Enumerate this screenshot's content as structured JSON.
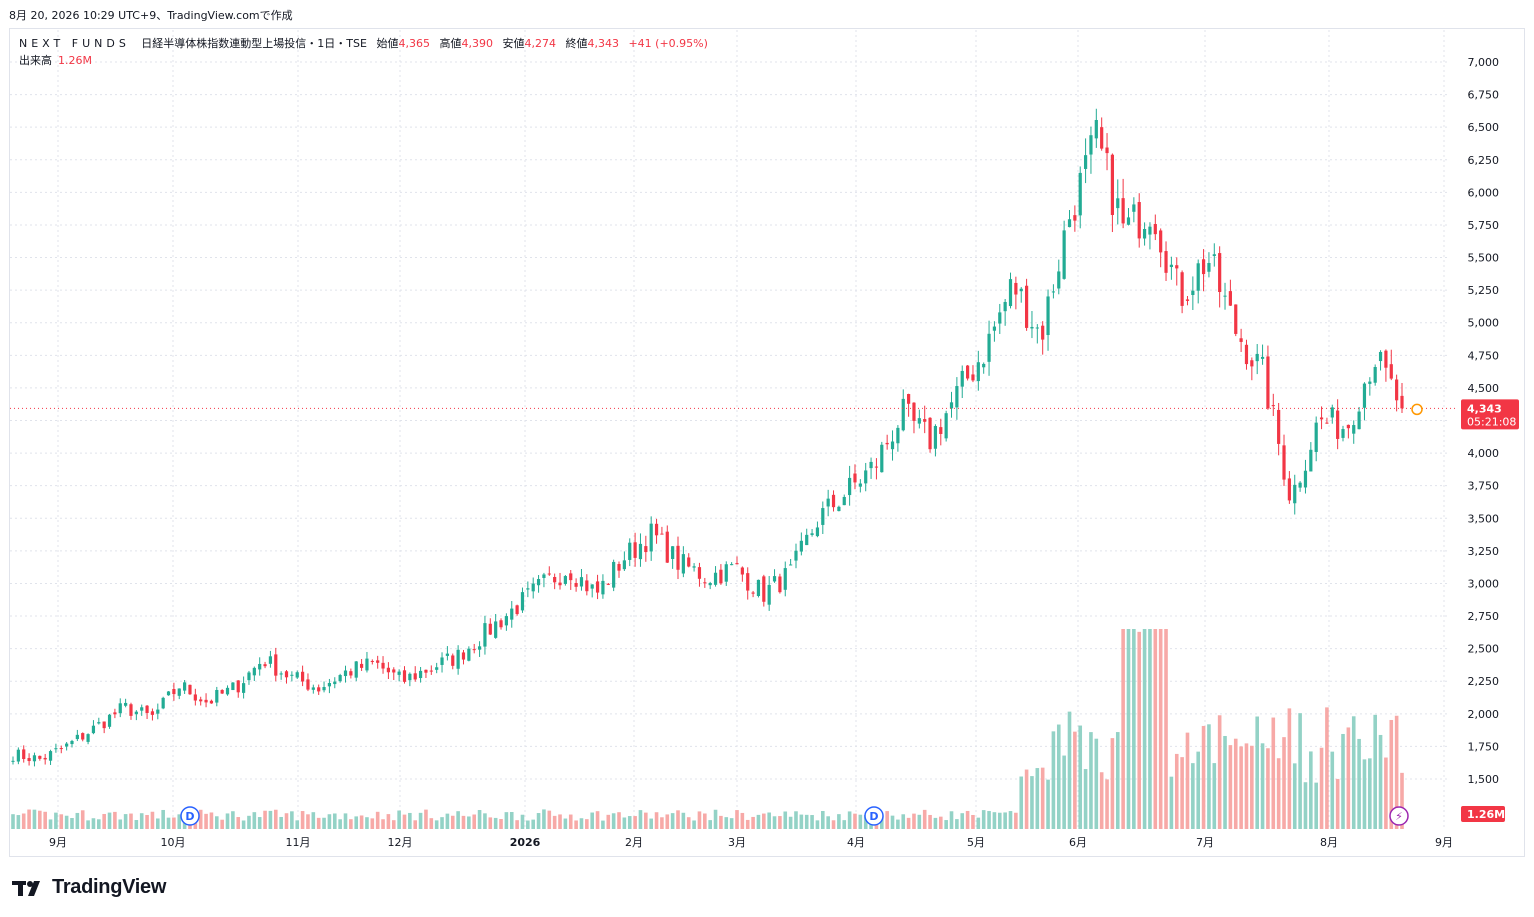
{
  "header": {
    "timestamp": "8月 20, 2026 10:29 UTC+9、TradingView.comで作成"
  },
  "legend": {
    "fund_name": "NEXT FUNDS",
    "instrument": "日経半導体株指数連動型上場投信・1日・TSE",
    "open_label": "始値",
    "open": "4,365",
    "high_label": "高値",
    "high": "4,390",
    "low_label": "安値",
    "low": "4,274",
    "close_label": "終値",
    "close": "4,343",
    "change": "+41 (+0.95%)",
    "volume_label": "出来高",
    "volume": "1.26M"
  },
  "price_badge": {
    "price": "4,343",
    "countdown": "05:21:08"
  },
  "volume_badge": "1.26M",
  "colors": {
    "up": "#22ab94",
    "down": "#f23645",
    "up_vol": "#93d2c6",
    "down_vol": "#f7a9a7",
    "grid": "#e0e3eb",
    "dividend": "#2962ff"
  },
  "footer": {
    "brand": "TradingView"
  },
  "dividend_markers": [
    {
      "label": "D",
      "date": "10月"
    },
    {
      "label": "D",
      "date": "4月"
    }
  ],
  "chart_data": {
    "type": "candlestick",
    "y_axis_ticks": [
      "7,000",
      "6,750",
      "6,500",
      "6,250",
      "6,000",
      "5,750",
      "5,500",
      "5,250",
      "5,000",
      "4,750",
      "4,500",
      "4,250",
      "4,000",
      "3,750",
      "3,500",
      "3,250",
      "3,000",
      "2,750",
      "2,500",
      "2,250",
      "2,000",
      "1,750",
      "1,500"
    ],
    "ylim": [
      1400,
      7100
    ],
    "x_axis_ticks": [
      "9月",
      "10月",
      "11月",
      "12月",
      "2026",
      "2月",
      "3月",
      "4月",
      "5月",
      "6月",
      "7月",
      "8月",
      "9月"
    ],
    "close_points": [
      [
        "8月",
        1690
      ],
      [
        "9月",
        1650
      ],
      [
        "9月",
        1760
      ],
      [
        "9月",
        1900
      ],
      [
        "10月",
        2050
      ],
      [
        "10月",
        1970
      ],
      [
        "10月",
        2220
      ],
      [
        "10月",
        2090
      ],
      [
        "11月",
        2200
      ],
      [
        "11月",
        2420
      ],
      [
        "11月",
        2280
      ],
      [
        "12月",
        2200
      ],
      [
        "12月",
        2320
      ],
      [
        "12月",
        2390
      ],
      [
        "12月",
        2250
      ],
      [
        "2026",
        2350
      ],
      [
        "2026",
        2440
      ],
      [
        "2026",
        2620
      ],
      [
        "2026",
        2800
      ],
      [
        "2月",
        2980
      ],
      [
        "2月",
        3120
      ],
      [
        "2月",
        2920
      ],
      [
        "2月",
        3200
      ],
      [
        "3月",
        3380
      ],
      [
        "3月",
        3150
      ],
      [
        "3月",
        3050
      ],
      [
        "3月",
        3120
      ],
      [
        "4月",
        2920
      ],
      [
        "4月",
        3080
      ],
      [
        "4月",
        3500
      ],
      [
        "4月",
        3700
      ],
      [
        "5月",
        3900
      ],
      [
        "5月",
        4300
      ],
      [
        "5月",
        4100
      ],
      [
        "5月",
        4450
      ],
      [
        "6月",
        4800
      ],
      [
        "6月",
        5300
      ],
      [
        "6月",
        4900
      ],
      [
        "6月",
        5800
      ],
      [
        "6月",
        6400
      ],
      [
        "7月",
        5700
      ],
      [
        "7月",
        5900
      ],
      [
        "7月",
        5200
      ],
      [
        "7月",
        5500
      ],
      [
        "7月",
        4950
      ],
      [
        "7月",
        4600
      ],
      [
        "8月",
        3650
      ],
      [
        "8月",
        4250
      ],
      [
        "8月",
        4200
      ],
      [
        "8月",
        4750
      ],
      [
        "8月",
        4343
      ]
    ],
    "last_close": 4343,
    "volume_label": "出来高",
    "last_volume": "1.26M"
  }
}
